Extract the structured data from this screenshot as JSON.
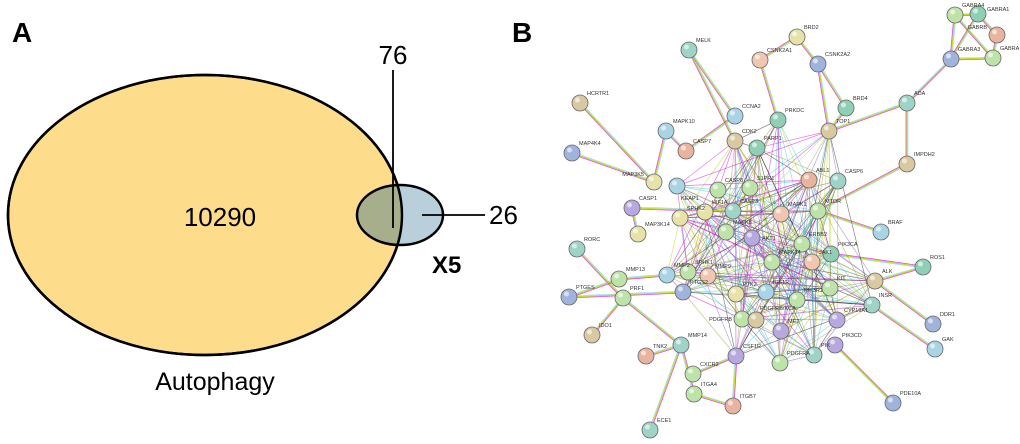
{
  "panel_a": {
    "label": "A",
    "big_set": {
      "name": "Autophagy",
      "count": "10290",
      "color": "#fddc8c"
    },
    "small_set": {
      "name": "X5",
      "count": "26",
      "color": "#b9d0dc"
    },
    "intersection": {
      "count": "76",
      "color": "#a6ae8c"
    }
  },
  "panel_b": {
    "label": "B",
    "node_colors": [
      "#9fd3c7",
      "#e6e2a8",
      "#e8b4a0",
      "#9fb3dd",
      "#bde3a8",
      "#a9d4e6",
      "#d9c9a0",
      "#b7a9e0",
      "#8fd0b5",
      "#f0c6b0"
    ],
    "edge_colors": [
      "#d400d4",
      "#b8d600",
      "#222222",
      "#33c6e0",
      "#7a5cc8",
      "#9b9b2a"
    ],
    "nodes": [
      {
        "id": "MELK",
        "c": 0
      },
      {
        "id": "BRD2",
        "c": 1
      },
      {
        "id": "CSNK2A1",
        "c": 9
      },
      {
        "id": "CSNK2A2",
        "c": 3
      },
      {
        "id": "HCRTR1",
        "c": 6
      },
      {
        "id": "MAPK10",
        "c": 5
      },
      {
        "id": "CCNA2",
        "c": 5
      },
      {
        "id": "PRKDC",
        "c": 8
      },
      {
        "id": "BRD4",
        "c": 8
      },
      {
        "id": "TOP1",
        "c": 6
      },
      {
        "id": "ADA",
        "c": 0
      },
      {
        "id": "IMPDH2",
        "c": 6
      },
      {
        "id": "GABRA4",
        "c": 4
      },
      {
        "id": "GABRA1",
        "c": 8
      },
      {
        "id": "GABRB",
        "c": 2
      },
      {
        "id": "GABRA3",
        "c": 3
      },
      {
        "id": "GABRA",
        "c": 4
      },
      {
        "id": "MAP4K4",
        "c": 3
      },
      {
        "id": "CASP7",
        "c": 2
      },
      {
        "id": "CDK2",
        "c": 6
      },
      {
        "id": "PARP1",
        "c": 8
      },
      {
        "id": "ABL1",
        "c": 2
      },
      {
        "id": "CASP6",
        "c": 0
      },
      {
        "id": "MAP3K5",
        "c": 1
      },
      {
        "id": "KEAP1",
        "c": 5
      },
      {
        "id": "CASP8",
        "c": 4
      },
      {
        "id": "S1PR1",
        "c": 4
      },
      {
        "id": "CASP1",
        "c": 7
      },
      {
        "id": "HIF1A",
        "c": 1
      },
      {
        "id": "CASP3",
        "c": 0
      },
      {
        "id": "MAPK1",
        "c": 9
      },
      {
        "id": "MTOR",
        "c": 4
      },
      {
        "id": "SPHK2",
        "c": 1
      },
      {
        "id": "MAP3K14",
        "c": 1
      },
      {
        "id": "MAPK8",
        "c": 4
      },
      {
        "id": "AKT1",
        "c": 7
      },
      {
        "id": "BRAF",
        "c": 5
      },
      {
        "id": "ERBB2",
        "c": 4
      },
      {
        "id": "PIK3CA",
        "c": 8
      },
      {
        "id": "RORC",
        "c": 0
      },
      {
        "id": "JAK1",
        "c": 9
      },
      {
        "id": "MAPK14",
        "c": 4
      },
      {
        "id": "ALK",
        "c": 6
      },
      {
        "id": "ROS1",
        "c": 8
      },
      {
        "id": "KIT",
        "c": 4
      },
      {
        "id": "SPHK1",
        "c": 4
      },
      {
        "id": "MMP2",
        "c": 5
      },
      {
        "id": "MMP9",
        "c": 9
      },
      {
        "id": "MMP13",
        "c": 4
      },
      {
        "id": "PTGS2",
        "c": 3
      },
      {
        "id": "PTK2",
        "c": 1
      },
      {
        "id": "IGF1R",
        "c": 5
      },
      {
        "id": "PIK3R1",
        "c": 4
      },
      {
        "id": "INSR",
        "c": 0
      },
      {
        "id": "CYP19A1",
        "c": 7
      },
      {
        "id": "DDR1",
        "c": 3
      },
      {
        "id": "PTGES",
        "c": 3
      },
      {
        "id": "PRF1",
        "c": 4
      },
      {
        "id": "PDGFRB",
        "c": 4
      },
      {
        "id": "PIK3CA2",
        "c": 6
      },
      {
        "id": "MET",
        "c": 7
      },
      {
        "id": "IDO1",
        "c": 6
      },
      {
        "id": "MMP14",
        "c": 0
      },
      {
        "id": "PIK3CD",
        "c": 7
      },
      {
        "id": "TNK2",
        "c": 2
      },
      {
        "id": "CSF1R",
        "c": 7
      },
      {
        "id": "PDGFRA",
        "c": 4
      },
      {
        "id": "PIK",
        "c": 0
      },
      {
        "id": "GAK",
        "c": 5
      },
      {
        "id": "CXCR2",
        "c": 4
      },
      {
        "id": "ITGA4",
        "c": 4
      },
      {
        "id": "ITGB7",
        "c": 2
      },
      {
        "id": "PDE10A",
        "c": 3
      },
      {
        "id": "ECE1",
        "c": 0
      }
    ],
    "edges": [
      [
        "MELK",
        "CCNA2"
      ],
      [
        "MELK",
        "CDK2"
      ],
      [
        "BRD2",
        "CSNK2A2"
      ],
      [
        "BRD2",
        "CSNK2A1"
      ],
      [
        "CSNK2A2",
        "BRD4"
      ],
      [
        "CSNK2A2",
        "TOP1"
      ],
      [
        "CSNK2A1",
        "PRKDC"
      ],
      [
        "HCRTR1",
        "MAP3K5"
      ],
      [
        "MAP4K4",
        "MAP3K5"
      ],
      [
        "MAPK10",
        "CASP7"
      ],
      [
        "MAPK10",
        "MAP3K5"
      ],
      [
        "CCNA2",
        "CASP7"
      ],
      [
        "TOP1",
        "ADA"
      ],
      [
        "ADA",
        "IMPDH2"
      ],
      [
        "ADA",
        "GABRA3"
      ],
      [
        "IMPDH2",
        "MTOR"
      ],
      [
        "GABRA4",
        "GABRA1"
      ],
      [
        "GABRA4",
        "GABRA3"
      ],
      [
        "GABRA1",
        "GABRB"
      ],
      [
        "GABRB",
        "GABRA"
      ],
      [
        "GABRA3",
        "GABRA"
      ],
      [
        "GABRA4",
        "GABRA"
      ],
      [
        "GABRA1",
        "GABRA3"
      ],
      [
        "RORC",
        "PRF1"
      ],
      [
        "PTGES",
        "MMP13"
      ],
      [
        "PTGES",
        "PTGS2"
      ],
      [
        "IDO1",
        "PRF1"
      ],
      [
        "MMP13",
        "MMP2"
      ],
      [
        "PRF1",
        "MMP14"
      ],
      [
        "TNK2",
        "MMP14"
      ],
      [
        "ECE1",
        "MMP14"
      ],
      [
        "CXCR2",
        "CSF1R"
      ],
      [
        "ITGA4",
        "ITGB7"
      ],
      [
        "ITGA4",
        "MMP14"
      ],
      [
        "ITGB7",
        "CSF1R"
      ],
      [
        "PDE10A",
        "PIK3CD"
      ],
      [
        "ALK",
        "ROS1"
      ],
      [
        "ALK",
        "DDR1"
      ],
      [
        "INSR",
        "GAK"
      ],
      [
        "BRAF",
        "MTOR"
      ],
      [
        "ROS1",
        "PIK3CA"
      ],
      [
        "CASP1",
        "CASP3"
      ],
      [
        "CASP1",
        "MAP3K14"
      ],
      [
        "TOP1",
        "BRD4"
      ]
    ],
    "hubs": [
      "AKT1",
      "MAPK1",
      "MAPK8",
      "MAPK14",
      "CASP3",
      "CASP8",
      "HIF1A",
      "PIK3CA",
      "PIK3R1",
      "MTOR",
      "IGF1R",
      "PTK2",
      "ERBB2",
      "JAK1",
      "SPHK2",
      "MMP9",
      "CDK2",
      "PARP1",
      "S1PR1",
      "KIT",
      "MET",
      "PDGFRB",
      "ABL1",
      "TOP1",
      "PRKDC",
      "MMP2",
      "SPHK1",
      "PTGS2",
      "ALK",
      "INSR",
      "CSF1R",
      "PDGFRA",
      "PIK",
      "CYP19A1",
      "KEAP1",
      "CASP6"
    ]
  }
}
